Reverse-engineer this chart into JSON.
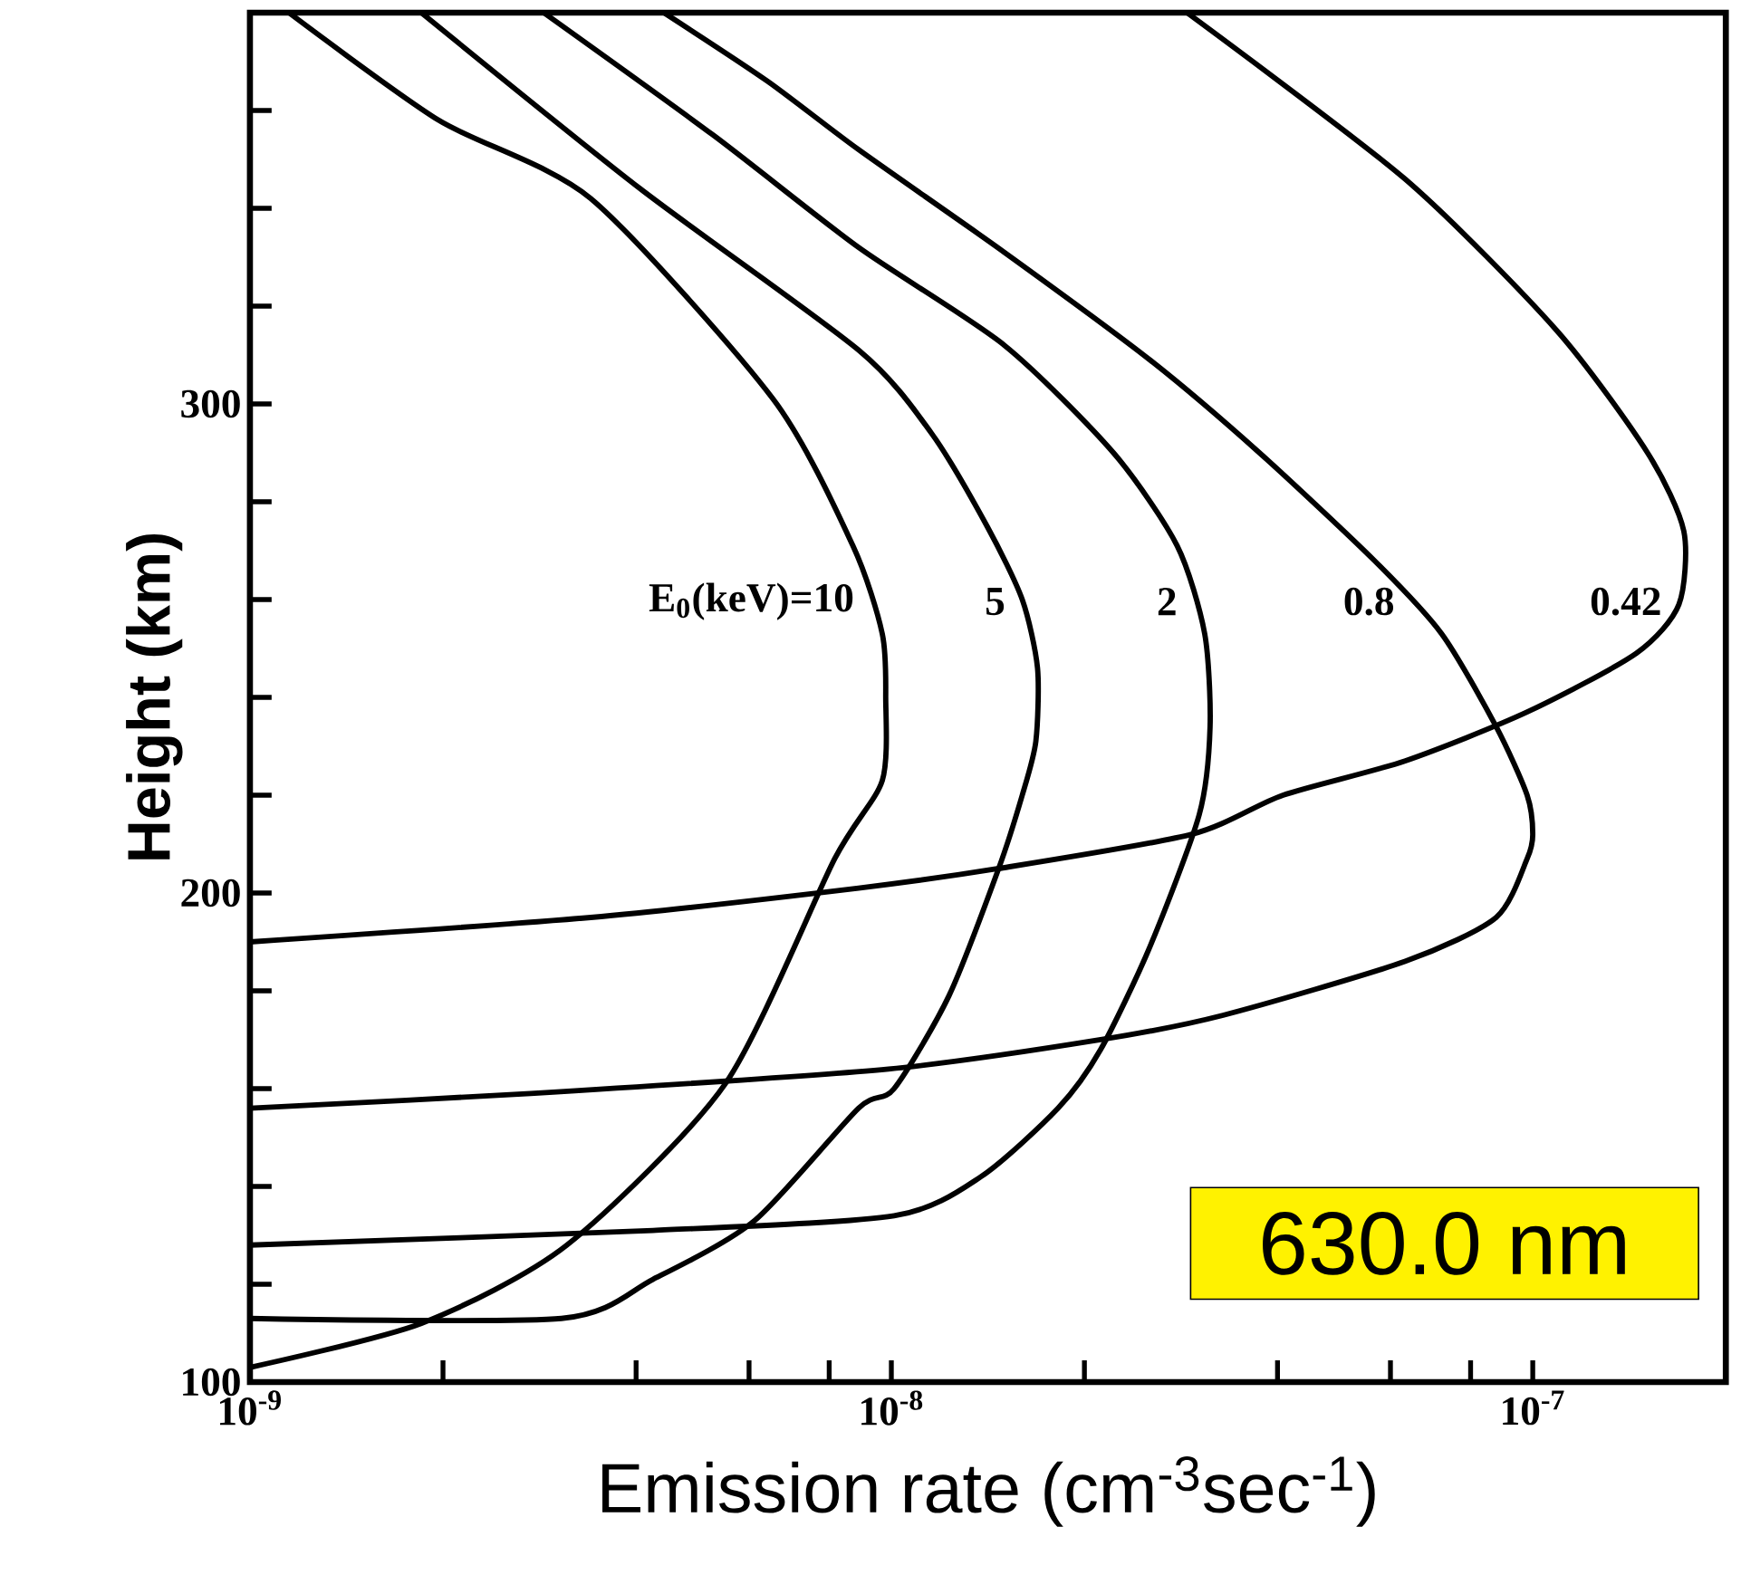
{
  "chart_data": {
    "type": "line",
    "xlabel": "Emission rate (cm$^{-3}$sec$^{-1}$)",
    "ylabel": "Height (km)",
    "annotations": [
      "630.0 nm"
    ],
    "log": "x",
    "marker": "none",
    "line_style": "solid",
    "xlim": [
      1e-09,
      2e-07
    ],
    "ylim": [
      100,
      380
    ],
    "xticks": [
      {
        "value": 1e-09,
        "label": "10$^{-9}$"
      },
      {
        "value": 2e-09,
        "label": null
      },
      {
        "value": 4e-09,
        "label": null
      },
      {
        "value": 6e-09,
        "label": null
      },
      {
        "value": 8e-09,
        "label": null
      },
      {
        "value": 1e-08,
        "label": "10$^{-8}$"
      },
      {
        "value": 2e-08,
        "label": null
      },
      {
        "value": 4e-08,
        "label": null
      },
      {
        "value": 6e-08,
        "label": null
      },
      {
        "value": 8e-08,
        "label": null
      },
      {
        "value": 1e-07,
        "label": "10$^{-7}$"
      }
    ],
    "yticks": [
      100,
      {
        "value": 120,
        "label": null
      },
      {
        "value": 140,
        "label": null
      },
      {
        "value": 160,
        "label": null
      },
      {
        "value": 180,
        "label": null
      },
      200,
      {
        "value": 220,
        "label": null
      },
      {
        "value": 240,
        "label": null
      },
      {
        "value": 260,
        "label": null
      },
      {
        "value": 280,
        "label": null
      },
      300,
      {
        "value": 320,
        "label": null
      },
      {
        "value": 340,
        "label": null
      },
      {
        "value": 360,
        "label": null
      }
    ],
    "series": [
      {
        "name": "E$_{0}$(keV)=10",
        "color": "#000000",
        "x": [
          1.15e-09,
          1.97e-09,
          3.4e-09,
          6.54e-09,
          8.71e-09,
          9.68e-09,
          9.8e-09,
          9.68e-09,
          8.16e-09,
          5.51e-09,
          3.12e-09,
          1.85e-09,
          1e-09
        ],
        "values": [
          380,
          358,
          342,
          301,
          271,
          253,
          240,
          223,
          207,
          161,
          128,
          112,
          103
        ]
      },
      {
        "name": "5",
        "color": "#000000",
        "x": [
          1.85e-09,
          4.06e-09,
          8.89e-09,
          1.155e-08,
          1.41e-08,
          1.6e-08,
          1.69e-08,
          1.68e-08,
          1.6e-08,
          1.47e-08,
          1.23e-08,
          1.01e-08,
          8.89e-09,
          6.12e-09,
          4.25e-09,
          3.06e-09,
          1e-09
        ],
        "values": [
          380,
          344,
          311,
          294,
          275,
          260,
          246,
          231,
          220,
          205,
          179,
          160,
          156,
          133,
          121,
          113,
          113
        ]
      },
      {
        "name": "2",
        "color": "#000000",
        "x": [
          2.87e-09,
          5.27e-09,
          8.89e-09,
          1.5e-08,
          2.22e-08,
          2.79e-08,
          3.08e-08,
          3.14e-08,
          3.02e-08,
          2.53e-08,
          2.12e-08,
          1.82e-08,
          1.38e-08,
          1.01e-08,
          4.25e-09,
          1e-09
        ],
        "values": [
          380,
          355,
          332,
          312,
          290,
          271,
          253,
          234,
          216,
          189,
          168,
          156,
          142,
          134,
          131,
          128
        ]
      },
      {
        "name": "0.8",
        "color": "#000000",
        "x": [
          4.42e-09,
          6.41e-09,
          8.89e-09,
          1.5e-08,
          2.53e-08,
          3.75e-08,
          5.66e-08,
          7.21e-08,
          8.77e-08,
          9.8e-08,
          1e-07,
          9.8e-08,
          8.77e-08,
          6.32e-08,
          3.29e-08,
          2.12e-08,
          9.9e-09,
          2.74e-09,
          1e-09
        ],
        "values": [
          380,
          366,
          352,
          331,
          309,
          290,
          268,
          253,
          234,
          220,
          212,
          207,
          195,
          186,
          175,
          170,
          164,
          159,
          156
        ]
      },
      {
        "name": "0.42",
        "color": "#000000",
        "x": [
          2.89e-08,
          6.32e-08,
          1.09e-07,
          1.51e-07,
          1.72e-07,
          1.69e-07,
          1.45e-07,
          9.8e-08,
          6.32e-08,
          4.08e-08,
          2.94e-08,
          1.47e-08,
          8.89e-09,
          3.4e-09,
          1e-09
        ],
        "values": [
          380,
          346,
          315,
          290,
          274,
          259,
          249,
          237,
          227,
          220,
          212,
          205,
          201,
          195,
          190
        ]
      }
    ]
  }
}
